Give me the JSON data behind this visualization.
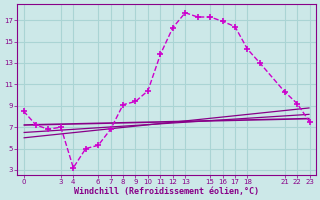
{
  "title": "Windchill (Refroidissement éolien,°C)",
  "bg_color": "#cce8e8",
  "grid_color": "#aad4d4",
  "line_color_main": "#cc00cc",
  "line_color_dark": "#880088",
  "hours": [
    0,
    1,
    2,
    3,
    4,
    5,
    6,
    7,
    8,
    9,
    10,
    11,
    12,
    13,
    14,
    15,
    16,
    17,
    18,
    19,
    20,
    21,
    22,
    23
  ],
  "curve1": [
    8.5,
    7.2,
    6.8,
    7.0,
    3.2,
    5.0,
    5.3,
    6.8,
    9.1,
    9.4,
    10.4,
    13.8,
    16.3,
    17.7,
    17.3,
    17.3,
    16.9,
    16.4,
    14.3,
    13.0,
    null,
    10.3,
    9.2,
    7.5
  ],
  "curve2": [
    8.5,
    7.2,
    6.8,
    7.0,
    3.2,
    5.0,
    5.3,
    6.8,
    9.1,
    9.4,
    10.4,
    13.8,
    16.3,
    17.7,
    17.3,
    17.3,
    16.9,
    16.4,
    14.3,
    13.0,
    null,
    10.3,
    9.2,
    7.5
  ],
  "trend_lines": [
    {
      "x": [
        0,
        23
      ],
      "y": [
        7.2,
        7.8
      ]
    },
    {
      "x": [
        0,
        23
      ],
      "y": [
        6.5,
        8.2
      ]
    },
    {
      "x": [
        0,
        23
      ],
      "y": [
        6.0,
        8.8
      ]
    }
  ],
  "xlim": [
    -0.5,
    23.5
  ],
  "ylim": [
    2.5,
    18.5
  ],
  "yticks": [
    3,
    5,
    7,
    9,
    11,
    13,
    15,
    17
  ],
  "xticks": [
    0,
    3,
    4,
    6,
    7,
    8,
    9,
    10,
    11,
    12,
    13,
    15,
    16,
    17,
    18,
    21,
    22,
    23
  ],
  "figsize": [
    3.2,
    2.0
  ],
  "dpi": 100
}
